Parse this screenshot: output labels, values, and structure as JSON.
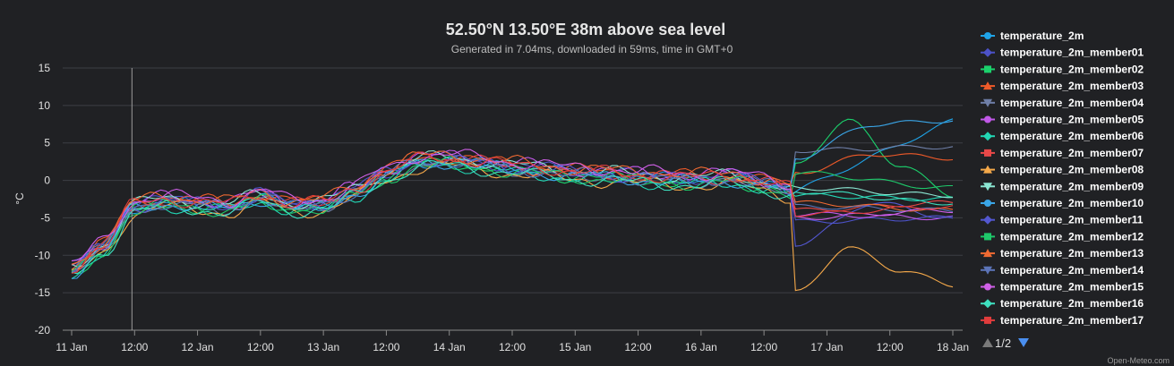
{
  "chart_data": {
    "type": "line",
    "title": "52.50°N 13.50°E 38m above sea level",
    "subtitle": "Generated in 7.04ms, downloaded in 59ms, time in GMT+0",
    "ylabel": "°C",
    "ylim": [
      -20,
      15
    ],
    "y_ticks": [
      15,
      10,
      5,
      0,
      -5,
      -10,
      -15,
      -20
    ],
    "x_range_hours": [
      0,
      168
    ],
    "x_ticks": [
      {
        "hour": 0,
        "label": "11 Jan"
      },
      {
        "hour": 12,
        "label": "12:00"
      },
      {
        "hour": 24,
        "label": "12 Jan"
      },
      {
        "hour": 36,
        "label": "12:00"
      },
      {
        "hour": 48,
        "label": "13 Jan"
      },
      {
        "hour": 60,
        "label": "12:00"
      },
      {
        "hour": 72,
        "label": "14 Jan"
      },
      {
        "hour": 84,
        "label": "12:00"
      },
      {
        "hour": 96,
        "label": "15 Jan"
      },
      {
        "hour": 108,
        "label": "12:00"
      },
      {
        "hour": 120,
        "label": "16 Jan"
      },
      {
        "hour": 132,
        "label": "12:00"
      },
      {
        "hour": 144,
        "label": "17 Jan"
      },
      {
        "hour": 156,
        "label": "12:00"
      },
      {
        "hour": 168,
        "label": "18 Jan"
      }
    ],
    "crosshair_hour": 11.5,
    "grid": true,
    "legend_position": "right",
    "legend_page": "1/2",
    "credit": "Open-Meteo.com",
    "base_series": {
      "x": [
        0,
        6,
        12,
        18,
        24,
        30,
        36,
        42,
        48,
        54,
        60,
        66,
        72,
        78,
        84,
        90,
        96,
        102,
        108,
        114,
        120,
        126,
        132,
        138,
        144,
        150,
        156,
        162,
        168
      ],
      "y": [
        -12,
        -9,
        -3.5,
        -2.8,
        -3.2,
        -3.5,
        -2.2,
        -3.4,
        -3.2,
        -1.5,
        0.8,
        2.5,
        2.7,
        2.2,
        1.7,
        1.3,
        0.9,
        0.7,
        0.4,
        0.2,
        0.1,
        0.3,
        -0.5,
        -1.5,
        -3,
        -4.5,
        -3,
        -3.5,
        -3.8
      ]
    },
    "series": [
      {
        "name": "temperature_2m",
        "color": "#1fa4e8",
        "marker": "circle",
        "offset": 0,
        "end": [
          8
        ]
      },
      {
        "name": "temperature_2m_member01",
        "color": "#4c52c9",
        "marker": "diamond",
        "offset": 0.3,
        "end": [
          -5.5,
          -5
        ]
      },
      {
        "name": "temperature_2m_member02",
        "color": "#1bd16c",
        "marker": "square",
        "offset": -0.4,
        "end": [
          2,
          8,
          2,
          -2
        ]
      },
      {
        "name": "temperature_2m_member03",
        "color": "#ef5a29",
        "marker": "triangle",
        "offset": 0.5,
        "end": [
          1,
          3.5,
          3
        ]
      },
      {
        "name": "temperature_2m_member04",
        "color": "#6f7fa8",
        "marker": "triangle-down",
        "offset": -0.2,
        "end": [
          4,
          4.5
        ]
      },
      {
        "name": "temperature_2m_member05",
        "color": "#c158e8",
        "marker": "circle",
        "offset": 0.6,
        "end": [
          -4.5,
          -5
        ]
      },
      {
        "name": "temperature_2m_member06",
        "color": "#22d6b4",
        "marker": "diamond",
        "offset": -0.6,
        "end": [
          -2,
          -2.5
        ]
      },
      {
        "name": "temperature_2m_member07",
        "color": "#e84848",
        "marker": "square",
        "offset": 0.2,
        "end": [
          -4,
          -3
        ]
      },
      {
        "name": "temperature_2m_member08",
        "color": "#f5a94a",
        "marker": "triangle",
        "offset": -0.8,
        "end": [
          -15,
          -9,
          -12,
          -14
        ]
      },
      {
        "name": "temperature_2m_member09",
        "color": "#8be6d2",
        "marker": "triangle-down",
        "offset": 0.4,
        "end": [
          -1,
          -2
        ]
      },
      {
        "name": "temperature_2m_member10",
        "color": "#3aa6e8",
        "marker": "circle",
        "offset": -0.3,
        "end": [
          3,
          7.5,
          8
        ]
      },
      {
        "name": "temperature_2m_member11",
        "color": "#5357d0",
        "marker": "diamond",
        "offset": 0.1,
        "end": [
          -8.5,
          -3,
          -5
        ]
      },
      {
        "name": "temperature_2m_member12",
        "color": "#1ec86a",
        "marker": "square",
        "offset": -0.5,
        "end": [
          1,
          -1
        ]
      },
      {
        "name": "temperature_2m_member13",
        "color": "#f06a32",
        "marker": "triangle",
        "offset": 0.7,
        "end": [
          -3,
          -4
        ]
      },
      {
        "name": "temperature_2m_member14",
        "color": "#5c74b8",
        "marker": "triangle-down",
        "offset": -0.1,
        "end": [
          -3.5,
          -4
        ]
      },
      {
        "name": "temperature_2m_member15",
        "color": "#d060e8",
        "marker": "circle",
        "offset": 0.8,
        "end": [
          -5,
          -4
        ]
      },
      {
        "name": "temperature_2m_member16",
        "color": "#3ee0c0",
        "marker": "diamond",
        "offset": -0.7,
        "end": [
          -1.5,
          -3
        ]
      },
      {
        "name": "temperature_2m_member17",
        "color": "#e03c3c",
        "marker": "square",
        "offset": 0.35,
        "end": [
          -4.5,
          -3.5
        ]
      }
    ]
  }
}
